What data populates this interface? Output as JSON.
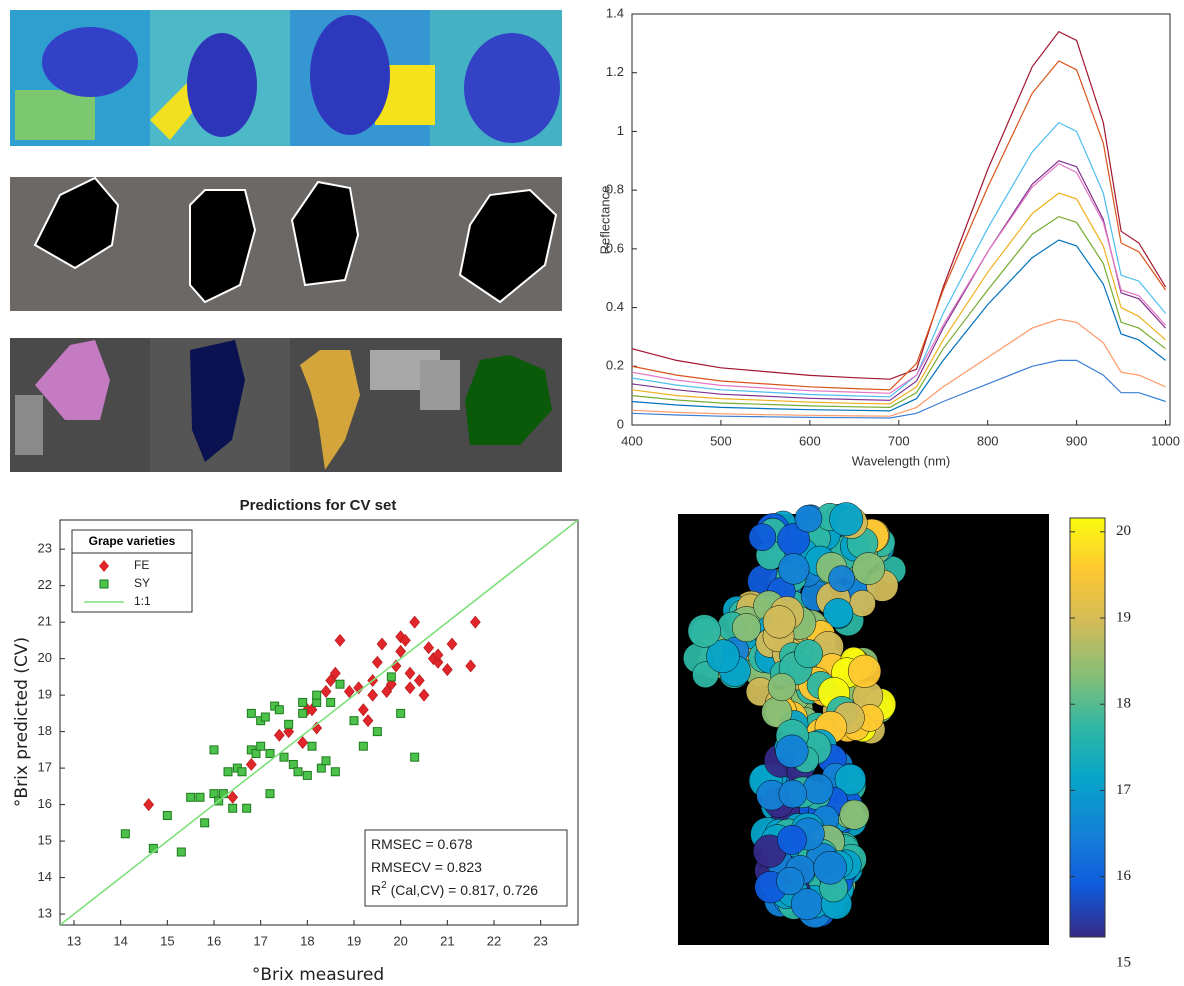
{
  "chart_data": [
    {
      "type": "line",
      "xlabel": "Wavelength (nm)",
      "ylabel": "Reflectance",
      "x": [
        400,
        450,
        500,
        550,
        600,
        650,
        690,
        720,
        750,
        800,
        850,
        880,
        900,
        930,
        950,
        970,
        1000
      ],
      "xlim": [
        400,
        1005
      ],
      "ylim": [
        0,
        1.4
      ],
      "xticks": [
        400,
        500,
        600,
        700,
        800,
        900,
        1000
      ],
      "yticks": [
        0,
        0.2,
        0.4,
        0.6,
        0.8,
        1,
        1.2,
        1.4
      ],
      "series": [
        {
          "color": "#a2142f",
          "values": [
            0.26,
            0.22,
            0.195,
            0.182,
            0.169,
            0.161,
            0.156,
            0.19,
            0.47,
            0.87,
            1.22,
            1.34,
            1.31,
            1.03,
            0.66,
            0.62,
            0.47
          ]
        },
        {
          "color": "#d95319",
          "values": [
            0.2,
            0.17,
            0.15,
            0.14,
            0.13,
            0.124,
            0.12,
            0.21,
            0.46,
            0.81,
            1.13,
            1.24,
            1.21,
            0.96,
            0.62,
            0.59,
            0.46
          ]
        },
        {
          "color": "#4dbeee",
          "values": [
            0.16,
            0.136,
            0.12,
            0.112,
            0.104,
            0.099,
            0.096,
            0.17,
            0.38,
            0.67,
            0.93,
            1.03,
            1.0,
            0.79,
            0.51,
            0.49,
            0.38
          ]
        },
        {
          "color": "#7e2f8e",
          "values": [
            0.14,
            0.12,
            0.105,
            0.098,
            0.091,
            0.087,
            0.084,
            0.15,
            0.33,
            0.59,
            0.82,
            0.9,
            0.88,
            0.7,
            0.45,
            0.43,
            0.33
          ]
        },
        {
          "color": "#e377c2",
          "values": [
            0.18,
            0.153,
            0.135,
            0.126,
            0.117,
            0.112,
            0.108,
            0.17,
            0.34,
            0.59,
            0.81,
            0.89,
            0.86,
            0.69,
            0.46,
            0.44,
            0.34
          ]
        },
        {
          "color": "#edb120",
          "values": [
            0.12,
            0.1,
            0.09,
            0.084,
            0.078,
            0.074,
            0.072,
            0.13,
            0.29,
            0.52,
            0.72,
            0.79,
            0.77,
            0.61,
            0.4,
            0.37,
            0.29
          ]
        },
        {
          "color": "#77ac30",
          "values": [
            0.1,
            0.085,
            0.075,
            0.07,
            0.065,
            0.062,
            0.06,
            0.11,
            0.26,
            0.46,
            0.65,
            0.71,
            0.69,
            0.55,
            0.35,
            0.33,
            0.26
          ]
        },
        {
          "color": "#0072bd",
          "values": [
            0.08,
            0.068,
            0.06,
            0.056,
            0.052,
            0.05,
            0.048,
            0.09,
            0.22,
            0.41,
            0.57,
            0.63,
            0.61,
            0.48,
            0.31,
            0.29,
            0.22
          ]
        },
        {
          "color": "#ff9966",
          "values": [
            0.05,
            0.043,
            0.038,
            0.035,
            0.033,
            0.031,
            0.03,
            0.06,
            0.13,
            0.23,
            0.33,
            0.36,
            0.35,
            0.28,
            0.18,
            0.17,
            0.13
          ]
        },
        {
          "color": "#3a7fd5",
          "values": [
            0.04,
            0.034,
            0.03,
            0.028,
            0.026,
            0.025,
            0.024,
            0.04,
            0.08,
            0.14,
            0.2,
            0.22,
            0.22,
            0.17,
            0.11,
            0.11,
            0.08
          ]
        }
      ]
    },
    {
      "type": "scatter",
      "title": "Predictions for CV set",
      "xlabel": "°Brix measured",
      "ylabel": "°Brix predicted (CV)",
      "xlim": [
        12.7,
        23.8
      ],
      "ylim": [
        12.7,
        23.8
      ],
      "xticks": [
        13,
        14,
        15,
        16,
        17,
        18,
        19,
        20,
        21,
        22,
        23
      ],
      "yticks": [
        13,
        14,
        15,
        16,
        17,
        18,
        19,
        20,
        21,
        22,
        23
      ],
      "legend": {
        "title": "Grape varieties",
        "position": "upper left"
      },
      "series": [
        {
          "name": "FE",
          "color": "#e0262b",
          "marker": "diamond",
          "x": [
            14.6,
            16.8,
            16.4,
            17.4,
            17.6,
            17.9,
            18.0,
            18.1,
            18.2,
            18.4,
            18.5,
            18.6,
            18.7,
            18.9,
            19.1,
            19.2,
            19.3,
            19.4,
            19.5,
            19.6,
            19.7,
            19.8,
            19.9,
            20.0,
            20.0,
            20.1,
            20.2,
            20.3,
            20.4,
            20.5,
            20.6,
            20.7,
            20.8,
            20.8,
            21.0,
            21.1,
            21.5,
            21.6,
            20.2,
            19.4
          ],
          "values": [
            16.0,
            17.1,
            16.2,
            17.9,
            18.0,
            17.7,
            18.6,
            18.6,
            18.1,
            19.1,
            19.4,
            19.6,
            20.5,
            19.1,
            19.2,
            18.6,
            18.3,
            19.4,
            19.9,
            20.4,
            19.1,
            19.3,
            19.8,
            20.2,
            20.6,
            20.5,
            19.6,
            21.0,
            19.4,
            19.0,
            20.3,
            20.0,
            19.9,
            20.1,
            19.7,
            20.4,
            19.8,
            21.0,
            19.2,
            19.0
          ]
        },
        {
          "name": "SY",
          "color": "#4cc24a",
          "marker": "square",
          "x": [
            14.1,
            14.7,
            15.0,
            15.3,
            15.5,
            15.7,
            15.8,
            16.0,
            16.0,
            16.1,
            16.2,
            16.3,
            16.4,
            16.5,
            16.6,
            16.7,
            16.8,
            16.8,
            16.9,
            17.0,
            17.0,
            17.1,
            17.2,
            17.2,
            17.3,
            17.4,
            17.5,
            17.6,
            17.7,
            17.8,
            17.9,
            18.0,
            18.1,
            18.2,
            18.3,
            18.4,
            18.5,
            18.6,
            18.7,
            19.0,
            19.2,
            19.5,
            19.8,
            20.0,
            20.3,
            17.9,
            18.2
          ],
          "values": [
            15.2,
            14.8,
            15.7,
            14.7,
            16.2,
            16.2,
            15.5,
            17.5,
            16.3,
            16.1,
            16.3,
            16.9,
            15.9,
            17.0,
            16.9,
            15.9,
            17.5,
            18.5,
            17.4,
            17.6,
            18.3,
            18.4,
            16.3,
            17.4,
            18.7,
            18.6,
            17.3,
            18.2,
            17.1,
            16.9,
            18.5,
            16.8,
            17.6,
            18.8,
            17.0,
            17.2,
            18.8,
            16.9,
            19.3,
            18.3,
            17.6,
            18.0,
            19.5,
            18.5,
            17.3,
            18.8,
            19.0
          ]
        },
        {
          "name": "1:1",
          "color": "#7ee07a",
          "marker": "line",
          "x": [
            12.7,
            23.8
          ],
          "values": [
            12.7,
            23.8
          ]
        }
      ],
      "annotations": [
        {
          "text": "RMSEC = 0.678"
        },
        {
          "text": "RMSECV = 0.823"
        },
        {
          "text": "R",
          "sup": "2",
          "rest": " (Cal,CV) = 0.817, 0.726"
        }
      ]
    },
    {
      "type": "colorbar",
      "clim": [
        15.3,
        20.16
      ],
      "ticks": [
        15,
        16,
        17,
        18,
        19,
        20
      ],
      "colormap": [
        "#352a87",
        "#0f5cdd",
        "#1481d6",
        "#06a4ca",
        "#2eb7a4",
        "#87bf77",
        "#d1bb59",
        "#fec832",
        "#f9fb0e"
      ]
    }
  ]
}
